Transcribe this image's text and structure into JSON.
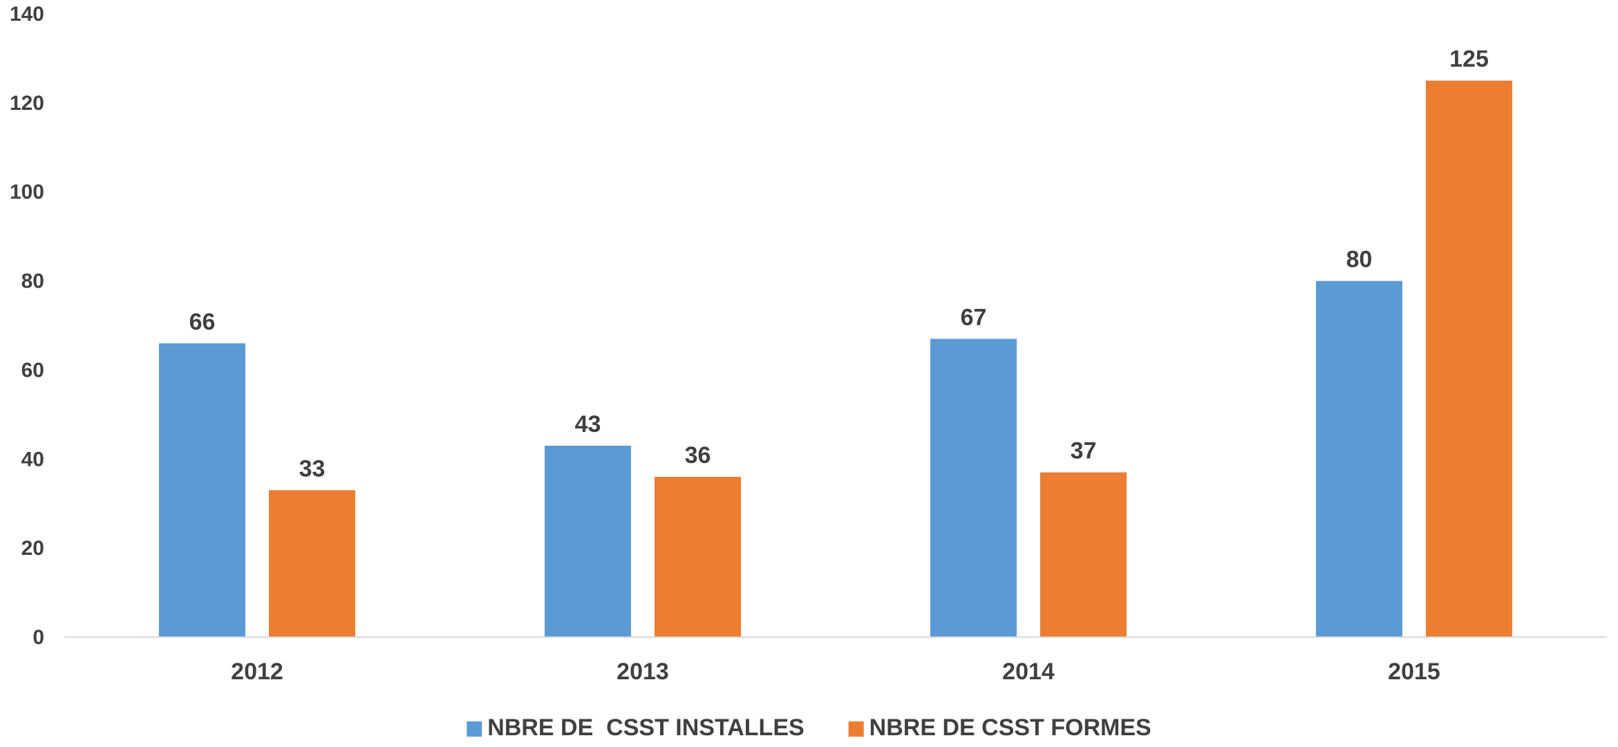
{
  "chart_data": {
    "type": "bar",
    "title": "",
    "xlabel": "",
    "ylabel": "",
    "categories": [
      "2012",
      "2013",
      "2014",
      "2015"
    ],
    "series": [
      {
        "name": "NBRE DE  CSST INSTALLES",
        "values": [
          66,
          43,
          67,
          80
        ],
        "color": "#5B9BD5"
      },
      {
        "name": "NBRE DE CSST FORMES",
        "values": [
          33,
          36,
          37,
          125
        ],
        "color": "#ED7D31"
      }
    ],
    "ylim": [
      0,
      140
    ],
    "yticks": [
      0,
      20,
      40,
      60,
      80,
      100,
      120,
      140
    ],
    "grid": false,
    "data_labels": true,
    "legend_position": "bottom"
  }
}
